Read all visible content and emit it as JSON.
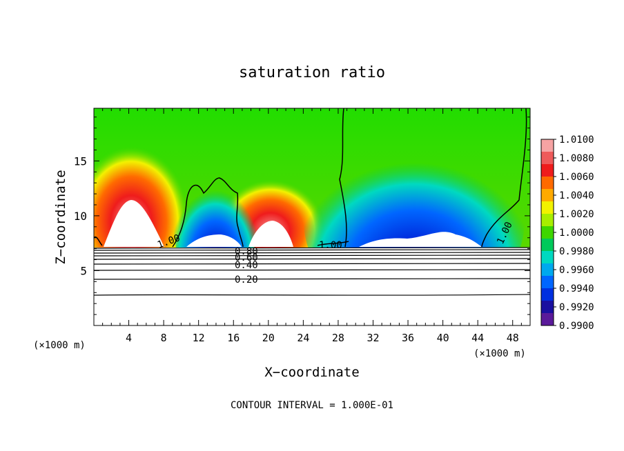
{
  "chart_data": {
    "type": "heatmap",
    "title": "saturation ratio",
    "xlabel": "X−coordinate",
    "ylabel": "Z−coordinate",
    "x_unit_left": "(×1000 m)",
    "x_unit_right": "(×1000 m)",
    "xlim": [
      0,
      50
    ],
    "ylim": [
      0,
      19.8
    ],
    "x_ticks": [
      "4",
      "8",
      "12",
      "16",
      "20",
      "24",
      "28",
      "32",
      "36",
      "40",
      "44",
      "48"
    ],
    "y_ticks": [
      "5",
      "10",
      "15"
    ],
    "colorbar": {
      "labels": [
        "1.0100",
        "1.0080",
        "1.0060",
        "1.0040",
        "1.0020",
        "1.0000",
        "0.9980",
        "0.9960",
        "0.9940",
        "0.9920",
        "0.9900"
      ],
      "colors": [
        "#f6a3a3",
        "#ee5a5a",
        "#ef1c1c",
        "#ff6a00",
        "#ffaa00",
        "#f2f200",
        "#a8ee00",
        "#3ed600",
        "#00c95a",
        "#00d9c0",
        "#00a9ee",
        "#0066ff",
        "#0030e0",
        "#1a10a0",
        "#5a1a9a"
      ]
    },
    "contour_labels": [
      "1.00",
      "1.00",
      "1.00",
      "0.80",
      "0.60",
      "0.40",
      "0.20"
    ],
    "contour_interval": "CONTOUR INTERVAL = 1.000E-01"
  }
}
